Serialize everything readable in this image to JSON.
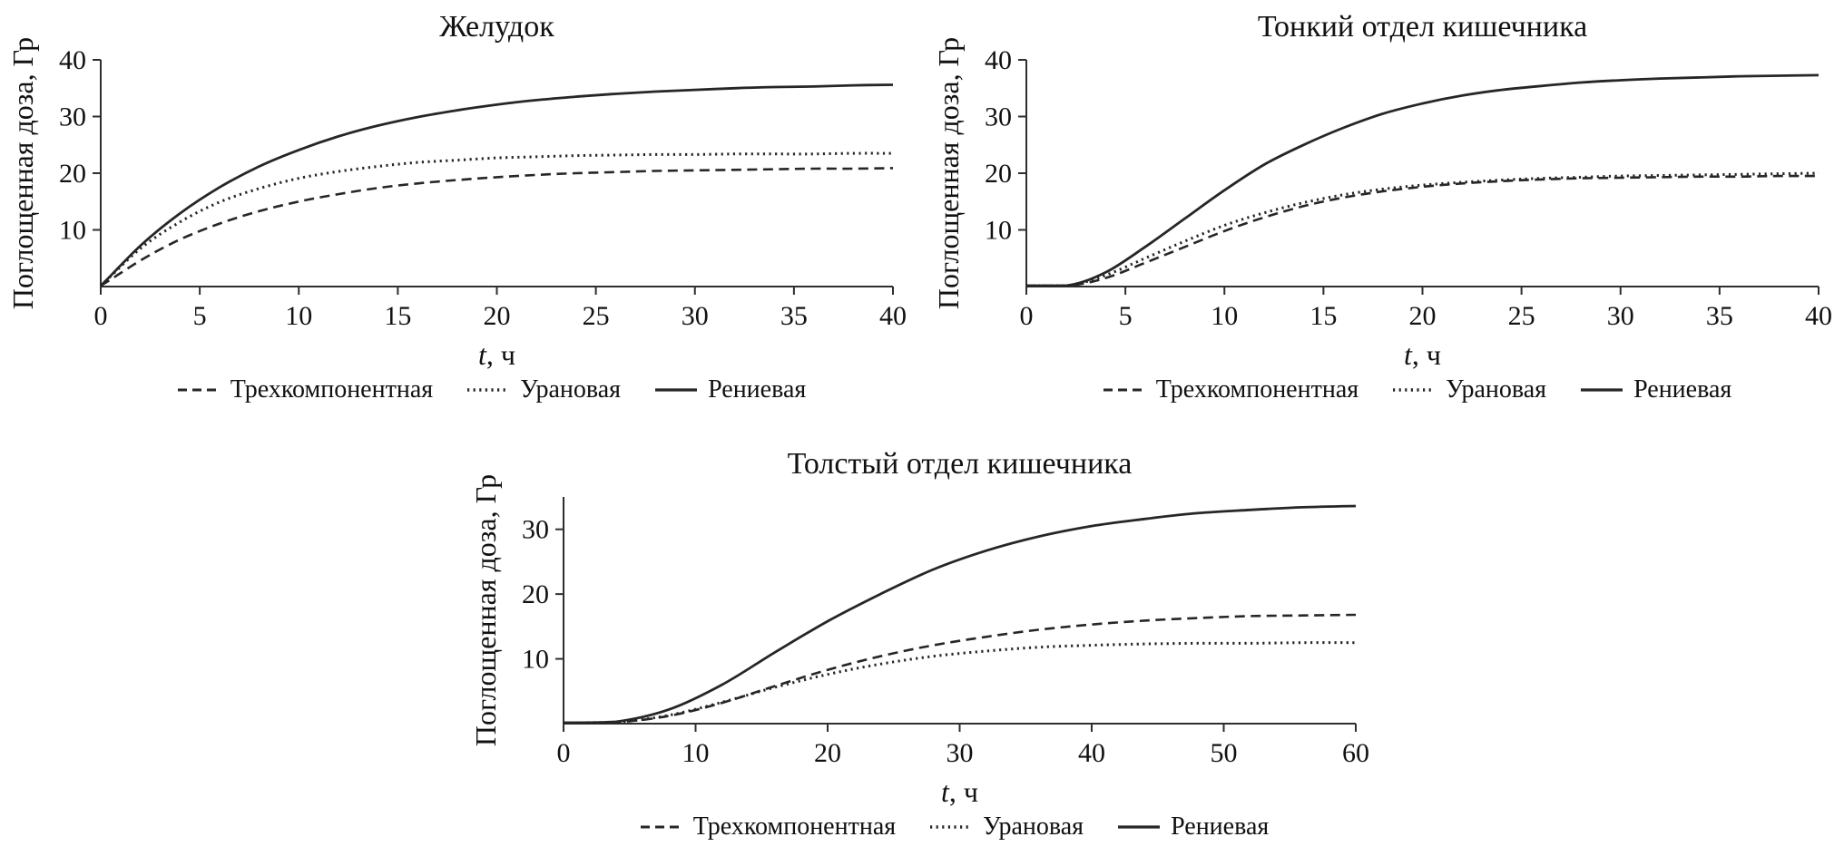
{
  "page": {
    "background": "#ffffff"
  },
  "colors": {
    "line": "#262626",
    "axis": "#2e2e2e",
    "text": "#111111"
  },
  "chart_data": [
    {
      "type": "line",
      "title": "Желудок",
      "xlabel_var": "t",
      "xlabel_unit": ", ч",
      "ylabel": "Поглощенная доза, Гр",
      "xlim": [
        0,
        40
      ],
      "ylim": [
        0,
        40
      ],
      "xticks": [
        0,
        5,
        10,
        15,
        20,
        25,
        30,
        35,
        40
      ],
      "yticks": [
        10,
        20,
        30,
        40
      ],
      "grid": false,
      "legend_position": "bottom",
      "x": [
        0,
        2,
        4,
        6,
        8,
        10,
        12,
        14,
        16,
        18,
        20,
        22,
        24,
        26,
        28,
        30,
        32,
        34,
        36,
        38,
        40
      ],
      "series": [
        {
          "name": "Трехкомпонентная",
          "style": "dashed",
          "y": [
            0,
            4.6,
            8.3,
            11.1,
            13.3,
            15,
            16.3,
            17.4,
            18.2,
            18.8,
            19.3,
            19.7,
            20,
            20.2,
            20.4,
            20.5,
            20.6,
            20.7,
            20.8,
            20.8,
            20.9
          ]
        },
        {
          "name": "Урановая",
          "style": "dotted",
          "y": [
            0,
            6.7,
            11.4,
            14.9,
            17.3,
            19.1,
            20.3,
            21.2,
            21.9,
            22.3,
            22.7,
            22.9,
            23.1,
            23.2,
            23.3,
            23.3,
            23.4,
            23.4,
            23.4,
            23.5,
            23.5
          ]
        },
        {
          "name": "Рениевая",
          "style": "solid",
          "y": [
            0,
            7.2,
            12.9,
            17.5,
            21.2,
            24.1,
            26.5,
            28.4,
            29.9,
            31.1,
            32.1,
            32.9,
            33.5,
            34,
            34.4,
            34.7,
            35,
            35.2,
            35.3,
            35.5,
            35.6
          ]
        }
      ]
    },
    {
      "type": "line",
      "title": "Тонкий отдел кишечника",
      "xlabel_var": "t",
      "xlabel_unit": ", ч",
      "ylabel": "Поглощенная доза, Гр",
      "xlim": [
        0,
        40
      ],
      "ylim": [
        0,
        40
      ],
      "xticks": [
        0,
        5,
        10,
        15,
        20,
        25,
        30,
        35,
        40
      ],
      "yticks": [
        10,
        20,
        30,
        40
      ],
      "grid": false,
      "legend_position": "bottom",
      "x": [
        0,
        2,
        4,
        6,
        8,
        10,
        12,
        14,
        16,
        18,
        20,
        22,
        24,
        26,
        28,
        30,
        32,
        34,
        36,
        38,
        40
      ],
      "series": [
        {
          "name": "Трехкомпонентная",
          "style": "dashed",
          "y": [
            0,
            0,
            1.5,
            4.2,
            7,
            9.8,
            12.2,
            14.2,
            15.7,
            16.8,
            17.6,
            18.2,
            18.6,
            18.9,
            19.1,
            19.2,
            19.3,
            19.4,
            19.4,
            19.5,
            19.5
          ]
        },
        {
          "name": "Урановая",
          "style": "dotted",
          "y": [
            0,
            0,
            2,
            5,
            8,
            10.8,
            13,
            14.8,
            16.2,
            17.2,
            17.9,
            18.4,
            18.8,
            19.1,
            19.3,
            19.5,
            19.6,
            19.7,
            19.8,
            19.9,
            20
          ]
        },
        {
          "name": "Рениевая",
          "style": "solid",
          "y": [
            0,
            0,
            2.5,
            7,
            12,
            17,
            21.5,
            25,
            28,
            30.5,
            32.3,
            33.7,
            34.7,
            35.4,
            36,
            36.4,
            36.7,
            36.9,
            37.1,
            37.2,
            37.3
          ]
        }
      ]
    },
    {
      "type": "line",
      "title": "Толстый отдел кишечника",
      "xlabel_var": "t",
      "xlabel_unit": ", ч",
      "ylabel": "Поглощенная доза, Гр",
      "xlim": [
        0,
        60
      ],
      "ylim": [
        0,
        35
      ],
      "xticks": [
        0,
        10,
        20,
        30,
        40,
        50,
        60
      ],
      "yticks": [
        10,
        20,
        30
      ],
      "grid": false,
      "legend_position": "bottom",
      "x": [
        0,
        4,
        8,
        12,
        16,
        20,
        24,
        28,
        32,
        36,
        40,
        44,
        48,
        52,
        56,
        60
      ],
      "series": [
        {
          "name": "Трехкомпонентная",
          "style": "dashed",
          "y": [
            0,
            0.2,
            1.2,
            3.2,
            5.8,
            8.3,
            10.4,
            12.1,
            13.4,
            14.5,
            15.3,
            15.9,
            16.3,
            16.6,
            16.7,
            16.8
          ]
        },
        {
          "name": "Урановая",
          "style": "dotted",
          "y": [
            0,
            0.2,
            1.3,
            3.3,
            5.6,
            7.6,
            9.2,
            10.4,
            11.2,
            11.8,
            12.1,
            12.3,
            12.4,
            12.4,
            12.5,
            12.5
          ]
        },
        {
          "name": "Рениевая",
          "style": "solid",
          "y": [
            0,
            0.3,
            2.2,
            6,
            11,
            15.8,
            20,
            23.8,
            26.7,
            28.9,
            30.5,
            31.6,
            32.5,
            33,
            33.4,
            33.6
          ]
        }
      ]
    }
  ]
}
